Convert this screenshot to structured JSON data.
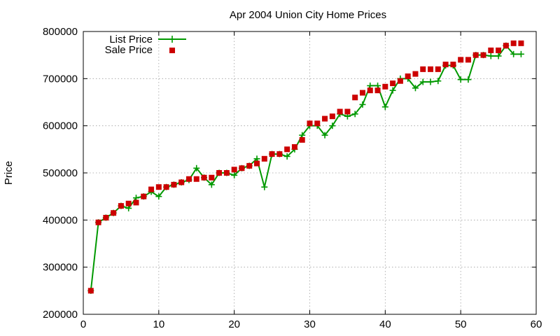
{
  "chart_data": {
    "type": "line",
    "title": "Apr 2004 Union City Home Prices",
    "xlabel": "",
    "ylabel": "Price",
    "xlim": [
      0,
      60
    ],
    "ylim": [
      200000,
      800000
    ],
    "x_ticks": [
      0,
      10,
      20,
      30,
      40,
      50,
      60
    ],
    "y_ticks": [
      200000,
      300000,
      400000,
      500000,
      600000,
      700000,
      800000
    ],
    "grid": true,
    "legend_position": "top-left",
    "series": [
      {
        "name": "List Price",
        "style": "line-with-plus-markers",
        "color": "#009900",
        "x": [
          1,
          2,
          3,
          4,
          5,
          6,
          7,
          8,
          9,
          10,
          11,
          12,
          13,
          14,
          15,
          16,
          17,
          18,
          19,
          20,
          21,
          22,
          23,
          24,
          25,
          26,
          27,
          28,
          29,
          30,
          31,
          32,
          33,
          34,
          35,
          36,
          37,
          38,
          39,
          40,
          41,
          42,
          43,
          44,
          45,
          46,
          47,
          48,
          49,
          50,
          51,
          52,
          53,
          54,
          55,
          56,
          57,
          58
        ],
        "y": [
          250000,
          395000,
          405000,
          415000,
          430000,
          425000,
          447000,
          450000,
          460000,
          450000,
          470000,
          475000,
          480000,
          485000,
          510000,
          490000,
          475000,
          500000,
          500000,
          495000,
          510000,
          515000,
          530000,
          470000,
          540000,
          540000,
          535000,
          550000,
          580000,
          600000,
          600000,
          580000,
          600000,
          625000,
          620000,
          625000,
          645000,
          685000,
          685000,
          640000,
          675000,
          700000,
          700000,
          680000,
          693000,
          693000,
          695000,
          728000,
          728000,
          698000,
          698000,
          750000,
          750000,
          748000,
          748000,
          770000,
          752000,
          752000
        ]
      },
      {
        "name": "Sale Price",
        "style": "square-markers",
        "color": "#cc0000",
        "x": [
          1,
          2,
          3,
          4,
          5,
          6,
          7,
          8,
          9,
          10,
          11,
          12,
          13,
          14,
          15,
          16,
          17,
          18,
          19,
          20,
          21,
          22,
          23,
          24,
          25,
          26,
          27,
          28,
          29,
          30,
          31,
          32,
          33,
          34,
          35,
          36,
          37,
          38,
          39,
          40,
          41,
          42,
          43,
          44,
          45,
          46,
          47,
          48,
          49,
          50,
          51,
          52,
          53,
          54,
          55,
          56,
          57,
          58
        ],
        "y": [
          250000,
          395000,
          405000,
          415000,
          430000,
          435000,
          437000,
          450000,
          465000,
          470000,
          470000,
          475000,
          480000,
          487000,
          487000,
          490000,
          490000,
          500000,
          500000,
          507000,
          510000,
          515000,
          520000,
          530000,
          540000,
          540000,
          550000,
          555000,
          570000,
          605000,
          605000,
          615000,
          620000,
          630000,
          630000,
          660000,
          670000,
          675000,
          675000,
          683000,
          690000,
          695000,
          705000,
          710000,
          720000,
          720000,
          720000,
          730000,
          730000,
          740000,
          740000,
          750000,
          750000,
          760000,
          760000,
          770000,
          775000,
          775000
        ]
      }
    ]
  }
}
